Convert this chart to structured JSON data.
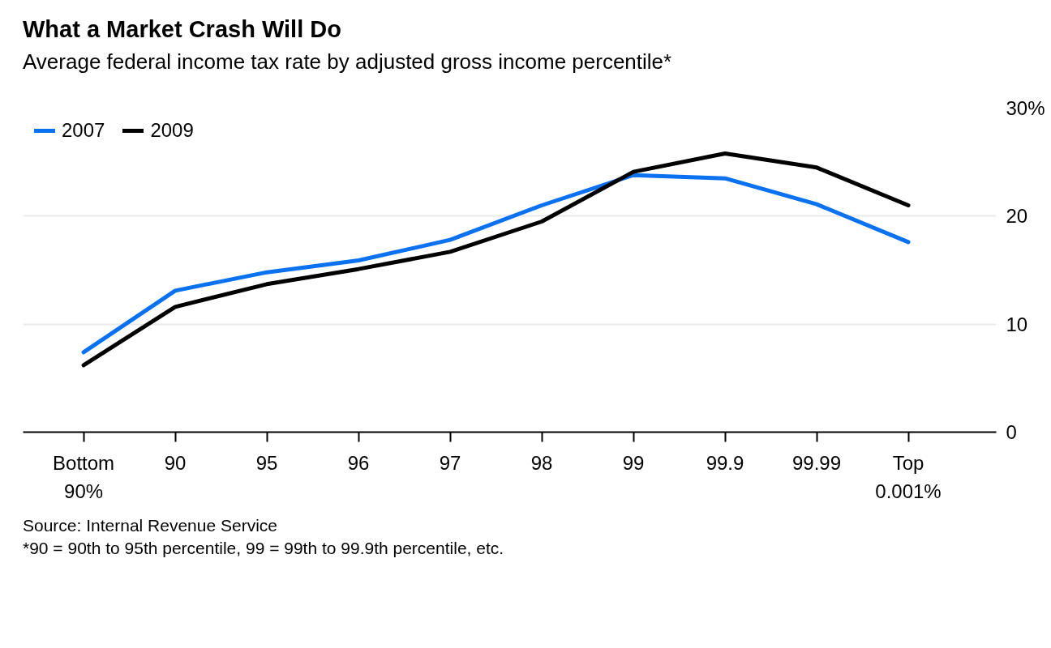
{
  "chart_data": {
    "type": "line",
    "title": "What a Market Crash Will Do",
    "subtitle": "Average federal income tax rate by adjusted gross income percentile*",
    "categories": [
      "Bottom 90%",
      "90",
      "95",
      "96",
      "97",
      "98",
      "99",
      "99.9",
      "99.99",
      "Top 0.001%"
    ],
    "series": [
      {
        "name": "2007",
        "color": "#0a72f0",
        "values": [
          7.4,
          13.1,
          14.8,
          15.9,
          17.8,
          21.0,
          23.8,
          23.5,
          21.1,
          17.6
        ]
      },
      {
        "name": "2009",
        "color": "#000000",
        "values": [
          6.2,
          11.6,
          13.7,
          15.1,
          16.7,
          19.5,
          24.1,
          25.8,
          24.5,
          21.0
        ]
      }
    ],
    "ylim": [
      0,
      30
    ],
    "yticks": [
      0,
      10,
      20,
      {
        "value": 30,
        "label": "30%"
      }
    ],
    "grid": "y",
    "legend": "top left",
    "annotations": [
      "Source: Internal Revenue Service",
      "*90 = 90th to 95th percentile, 99 = 99th to 99.9th percentile, etc."
    ]
  }
}
